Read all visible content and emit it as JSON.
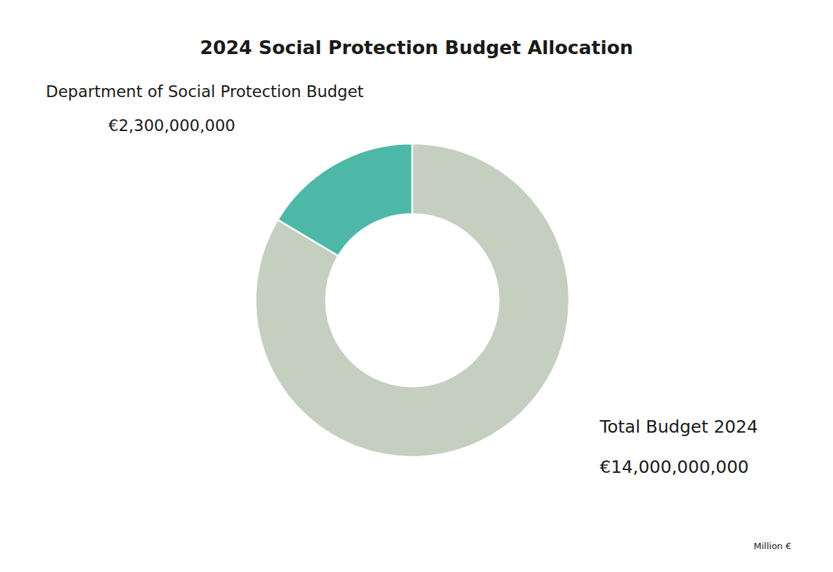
{
  "chart_data": {
    "type": "donut",
    "title": "2024 Social Protection Budget Allocation",
    "values": [
      2300000000,
      11700000000
    ],
    "colors": [
      "#4db8a8",
      "#c5cfc0"
    ],
    "annotations": [
      "Department of Social Protection Budget",
      "€2,300,000,000",
      "Total Budget 2024",
      "€14,000,000,000",
      "Million €"
    ]
  }
}
